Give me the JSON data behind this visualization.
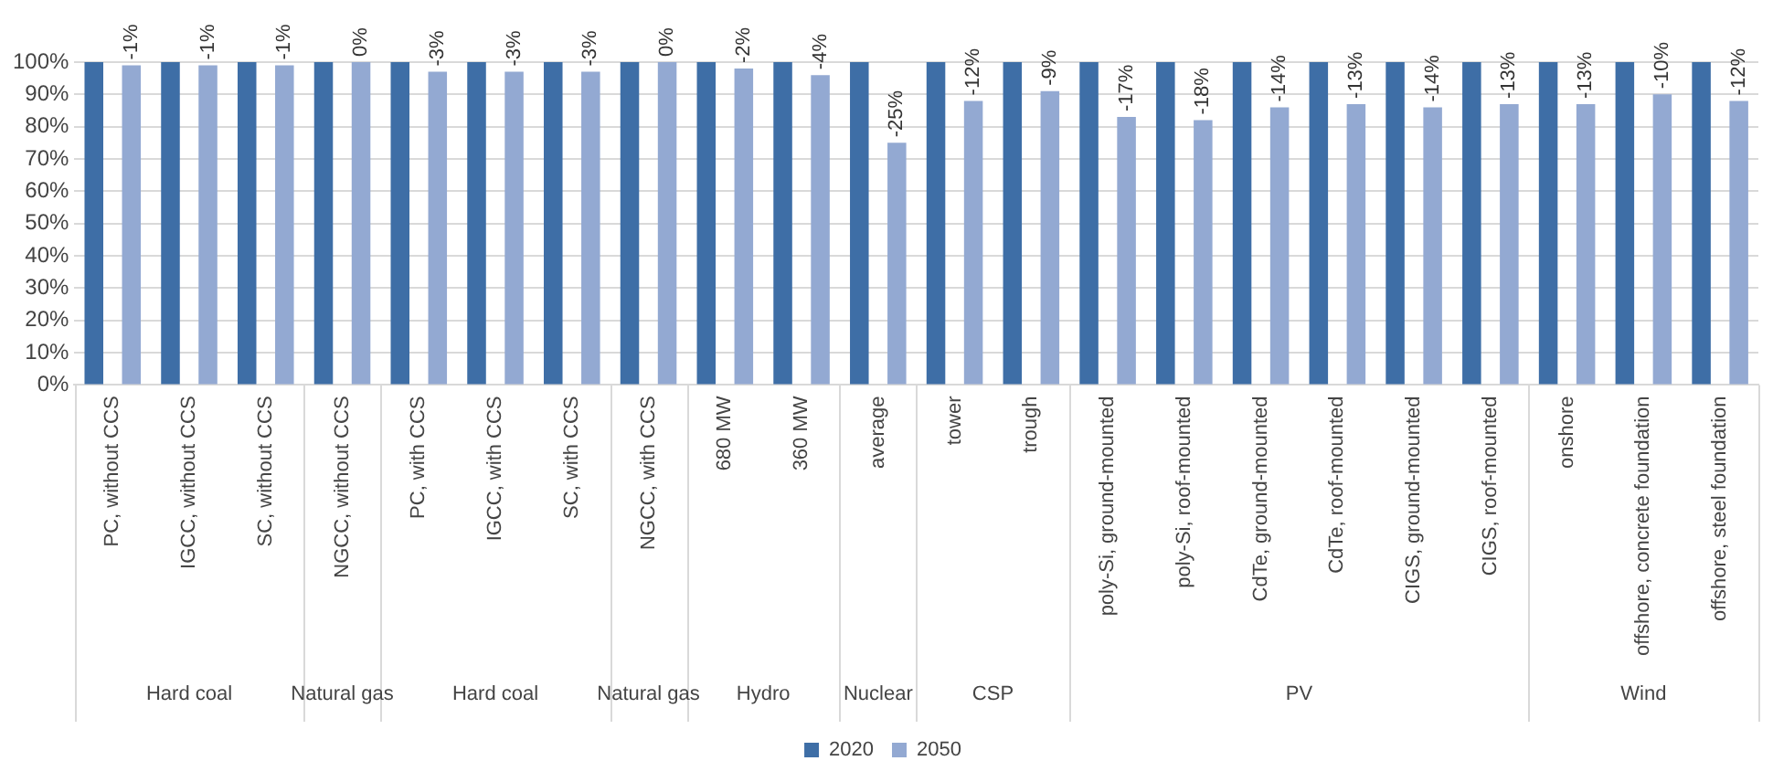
{
  "chart_data": {
    "type": "bar",
    "categories": [
      "PC, without CCS",
      "IGCC, without CCS",
      "SC, without CCS",
      "NGCC, without CCS",
      "PC, with CCS",
      "IGCC, with CCS",
      "SC, with CCS",
      "NGCC, with CCS",
      "680 MW",
      "360 MW",
      "average",
      "tower",
      "trough",
      "poly-Si, ground-mounted",
      "poly-Si, roof-mounted",
      "CdTe, ground-mounted",
      "CdTe, roof-mounted",
      "CIGS, ground-mounted",
      "CIGS, roof-mounted",
      "onshore",
      "offshore, concrete foundation",
      "offshore, steel foundation"
    ],
    "series": [
      {
        "name": "2020",
        "color": "#3e6ea6",
        "values": [
          100,
          100,
          100,
          100,
          100,
          100,
          100,
          100,
          100,
          100,
          100,
          100,
          100,
          100,
          100,
          100,
          100,
          100,
          100,
          100,
          100,
          100
        ]
      },
      {
        "name": "2050",
        "color": "#93a9d2",
        "values": [
          99,
          99,
          99,
          100,
          97,
          97,
          97,
          100,
          98,
          96,
          75,
          88,
          91,
          83,
          82,
          86,
          87,
          86,
          87,
          87,
          90,
          88
        ]
      }
    ],
    "ylim": [
      0,
      100
    ],
    "yticks": [
      {
        "value": 0,
        "label": "0%"
      },
      {
        "value": 10,
        "label": "10%"
      },
      {
        "value": 20,
        "label": "20%"
      },
      {
        "value": 30,
        "label": "30%"
      },
      {
        "value": 40,
        "label": "40%"
      },
      {
        "value": 50,
        "label": "50%"
      },
      {
        "value": 60,
        "label": "60%"
      },
      {
        "value": 70,
        "label": "70%"
      },
      {
        "value": 80,
        "label": "80%"
      },
      {
        "value": 90,
        "label": "90%"
      },
      {
        "value": 100,
        "label": "100%"
      }
    ],
    "annotations": [
      "Hard coal",
      "Natural gas",
      "Hard coal",
      "Natural gas",
      "Hydro",
      "Nuclear",
      "CSP",
      "PV",
      "Wind",
      "-1%",
      "-1%",
      "-1%",
      "0%",
      "-3%",
      "-3%",
      "-3%",
      "0%",
      "-2%",
      "-4%",
      "-25%",
      "-12%",
      "-9%",
      "-17%",
      "-18%",
      "-14%",
      "-13%",
      "-14%",
      "-13%",
      "-13%",
      "-10%",
      "-12%"
    ],
    "grid": "y",
    "legend": "bottom"
  }
}
